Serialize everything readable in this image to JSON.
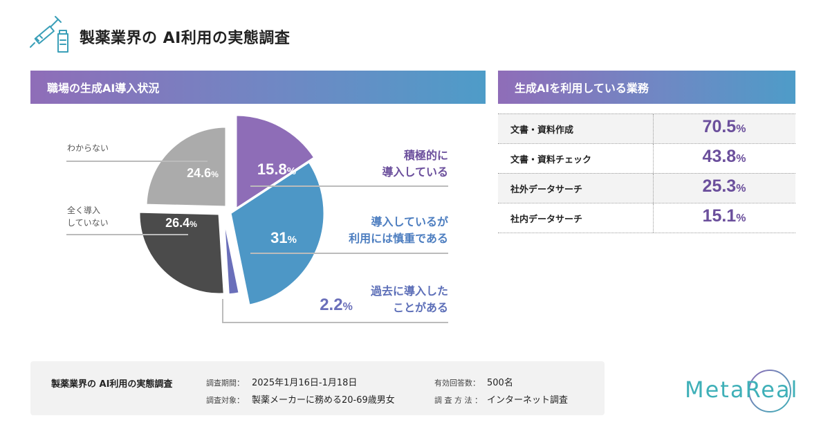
{
  "header": {
    "title": "製薬業界の AI利用の実態調査",
    "icon": "syringe-vial-icon"
  },
  "left_panel": {
    "title": "職場の生成AI導入状況"
  },
  "right_panel": {
    "title": "生成AIを利用している業務",
    "rows": [
      {
        "label": "文書・資料作成",
        "value": "70.5",
        "unit": "%"
      },
      {
        "label": "文書・資料チェック",
        "value": "43.8",
        "unit": "%"
      },
      {
        "label": "社外データサーチ",
        "value": "25.3",
        "unit": "%"
      },
      {
        "label": "社内データサーチ",
        "value": "15.1",
        "unit": "%"
      }
    ]
  },
  "chart_data": {
    "type": "pie",
    "title": "職場の生成AI導入状況",
    "slices": [
      {
        "label": "積極的に導入している",
        "value": 15.8,
        "value_text": "15.8",
        "color": "#8e6db7"
      },
      {
        "label": "導入しているが利用には慎重である",
        "value": 31,
        "value_text": "31",
        "color": "#4d97c6"
      },
      {
        "label": "過去に導入したことがある",
        "value": 2.2,
        "value_text": "2.2",
        "color": "#6a6fba"
      },
      {
        "label": "全く導入していない",
        "value": 26.4,
        "value_text": "26.4",
        "color": "#4b4b4b"
      },
      {
        "label": "わからない",
        "value": 24.6,
        "value_text": "24.6",
        "color": "#ababab"
      }
    ],
    "unit": "%",
    "label_lines": {
      "s0": [
        "積極的に",
        "導入している"
      ],
      "s1": [
        "導入しているが",
        "利用には慎重である"
      ],
      "s2": [
        "過去に導入した",
        "ことがある"
      ],
      "s3": [
        "全く導入",
        "していない"
      ],
      "s4": [
        "わからない"
      ]
    }
  },
  "footer": {
    "title": "製薬業界の AI利用の実態調査",
    "period_label": "調査期間：",
    "period_value": "2025年1月16日-1月18日",
    "target_label": "調査対象：",
    "target_value": "製薬メーカーに務める20-69歳男女",
    "responses_label": "有効回答数：",
    "responses_value": "500名",
    "method_label": "調 査 方 法 ：",
    "method_value": "インターネット調査"
  },
  "logo": {
    "text": "MetaReal"
  },
  "colors": {
    "accent_purple": "#6b4f9c",
    "band_start": "#8f6db8",
    "band_end": "#4e9cc8",
    "logo": "#3fb0b8"
  }
}
